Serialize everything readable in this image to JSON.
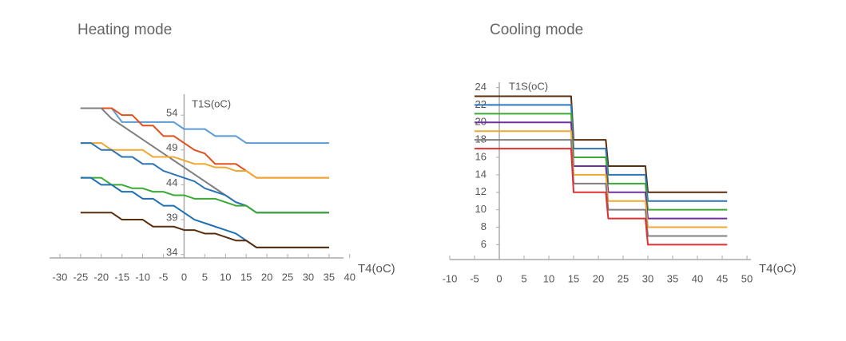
{
  "chart_data": [
    {
      "type": "line",
      "title": "Heating mode",
      "x_label": "T4(oC)",
      "y_label": "T1S(oC)",
      "x": [
        -25,
        -22.5,
        -20,
        -17.5,
        -15,
        -12.5,
        -10,
        -7.5,
        -5,
        -2.5,
        0,
        2.5,
        5,
        7.5,
        10,
        12.5,
        15,
        17.5,
        20,
        22.5,
        25,
        27.5,
        30,
        32.5,
        35
      ],
      "series": [
        {
          "color": "#5b9bd5",
          "values": [
            55,
            55,
            55,
            55,
            53,
            53,
            53,
            53,
            53,
            53,
            52,
            52,
            52,
            51,
            51,
            51,
            50,
            50,
            50,
            50,
            50,
            50,
            50,
            50,
            50
          ]
        },
        {
          "color": "#e0501f",
          "values": [
            55,
            55,
            55,
            55,
            54,
            54,
            52.5,
            52.5,
            51,
            51,
            50,
            49,
            48.5,
            47,
            47,
            47,
            46,
            45,
            45,
            45,
            45,
            45,
            45,
            45,
            45
          ]
        },
        {
          "color": "#7f7f7f",
          "values": [
            55,
            55,
            55,
            53.5,
            52.5,
            51.5,
            50.5,
            49.5,
            48.5,
            47.5,
            46.5,
            45.5,
            44.5,
            43.5,
            42.5,
            41.5,
            41,
            40,
            40,
            40,
            40,
            40,
            40,
            40,
            40
          ]
        },
        {
          "color": "#f0a830",
          "values": [
            50,
            50,
            50,
            49,
            49,
            49,
            49,
            48,
            48,
            48,
            47.5,
            47,
            47,
            46.5,
            46.5,
            46,
            46,
            45,
            45,
            45,
            45,
            45,
            45,
            45,
            45
          ]
        },
        {
          "color": "#2e75b6",
          "values": [
            50,
            50,
            49,
            49,
            48,
            48,
            47,
            47,
            46,
            45.5,
            45,
            44.5,
            43.5,
            43,
            42.5,
            41.5,
            41,
            40,
            40,
            40,
            40,
            40,
            40,
            40,
            40
          ]
        },
        {
          "color": "#3aaa35",
          "values": [
            45,
            45,
            45,
            44,
            44,
            43.5,
            43.5,
            43,
            43,
            42.5,
            42.5,
            42,
            42,
            42,
            41.5,
            41,
            41,
            40,
            40,
            40,
            40,
            40,
            40,
            40,
            40
          ]
        },
        {
          "color": "#1f6fb2",
          "values": [
            45,
            45,
            44,
            44,
            43,
            43,
            42,
            42,
            41,
            41,
            40,
            39,
            38.5,
            38,
            37.5,
            37,
            36,
            35,
            35,
            35,
            35,
            35,
            35,
            35,
            35
          ]
        },
        {
          "color": "#5a2d0c",
          "values": [
            40,
            40,
            40,
            40,
            39,
            39,
            39,
            38,
            38,
            38,
            37.5,
            37.5,
            37,
            37,
            36.5,
            36,
            36,
            35,
            35,
            35,
            35,
            35,
            35,
            35,
            35
          ]
        }
      ],
      "xlim": [
        -32.5,
        38.5
      ],
      "ylim": [
        33.5,
        57
      ],
      "xticks": [
        -30,
        -25,
        -20,
        -15,
        -10,
        -5,
        0,
        5,
        10,
        15,
        20,
        25,
        30,
        35,
        40
      ],
      "yticks": [
        34,
        39,
        44,
        49,
        54
      ]
    },
    {
      "type": "line",
      "title": "Cooling mode",
      "x_label": "T4(oC)",
      "y_label": "T1S(oC)",
      "x": [
        -5,
        14.5,
        15,
        21.5,
        22,
        29.5,
        30,
        46
      ],
      "series": [
        {
          "color": "#5a2d0c",
          "values": [
            23,
            23,
            18,
            18,
            15,
            15,
            12,
            12
          ]
        },
        {
          "color": "#2e75b6",
          "values": [
            22,
            22,
            17,
            17,
            14,
            14,
            11,
            11
          ]
        },
        {
          "color": "#3aaa35",
          "values": [
            21,
            21,
            16,
            16,
            13,
            13,
            10,
            10
          ]
        },
        {
          "color": "#7030a0",
          "values": [
            20,
            20,
            15,
            15,
            12,
            12,
            9,
            9
          ]
        },
        {
          "color": "#f0a830",
          "values": [
            19,
            19,
            14,
            14,
            11,
            11,
            8,
            8
          ]
        },
        {
          "color": "#7f7f7f",
          "values": [
            18,
            18,
            13,
            13,
            10,
            10,
            7,
            7
          ]
        },
        {
          "color": "#e03030",
          "values": [
            17,
            17,
            12,
            12,
            9,
            9,
            6,
            6
          ]
        }
      ],
      "xlim": [
        -10,
        50.8
      ],
      "ylim": [
        4.3,
        24.6
      ],
      "xticks": [
        -10,
        -5,
        0,
        5,
        10,
        15,
        20,
        25,
        30,
        35,
        40,
        45,
        50
      ],
      "yticks": [
        6,
        8,
        10,
        12,
        14,
        16,
        18,
        20,
        22,
        24
      ]
    }
  ]
}
